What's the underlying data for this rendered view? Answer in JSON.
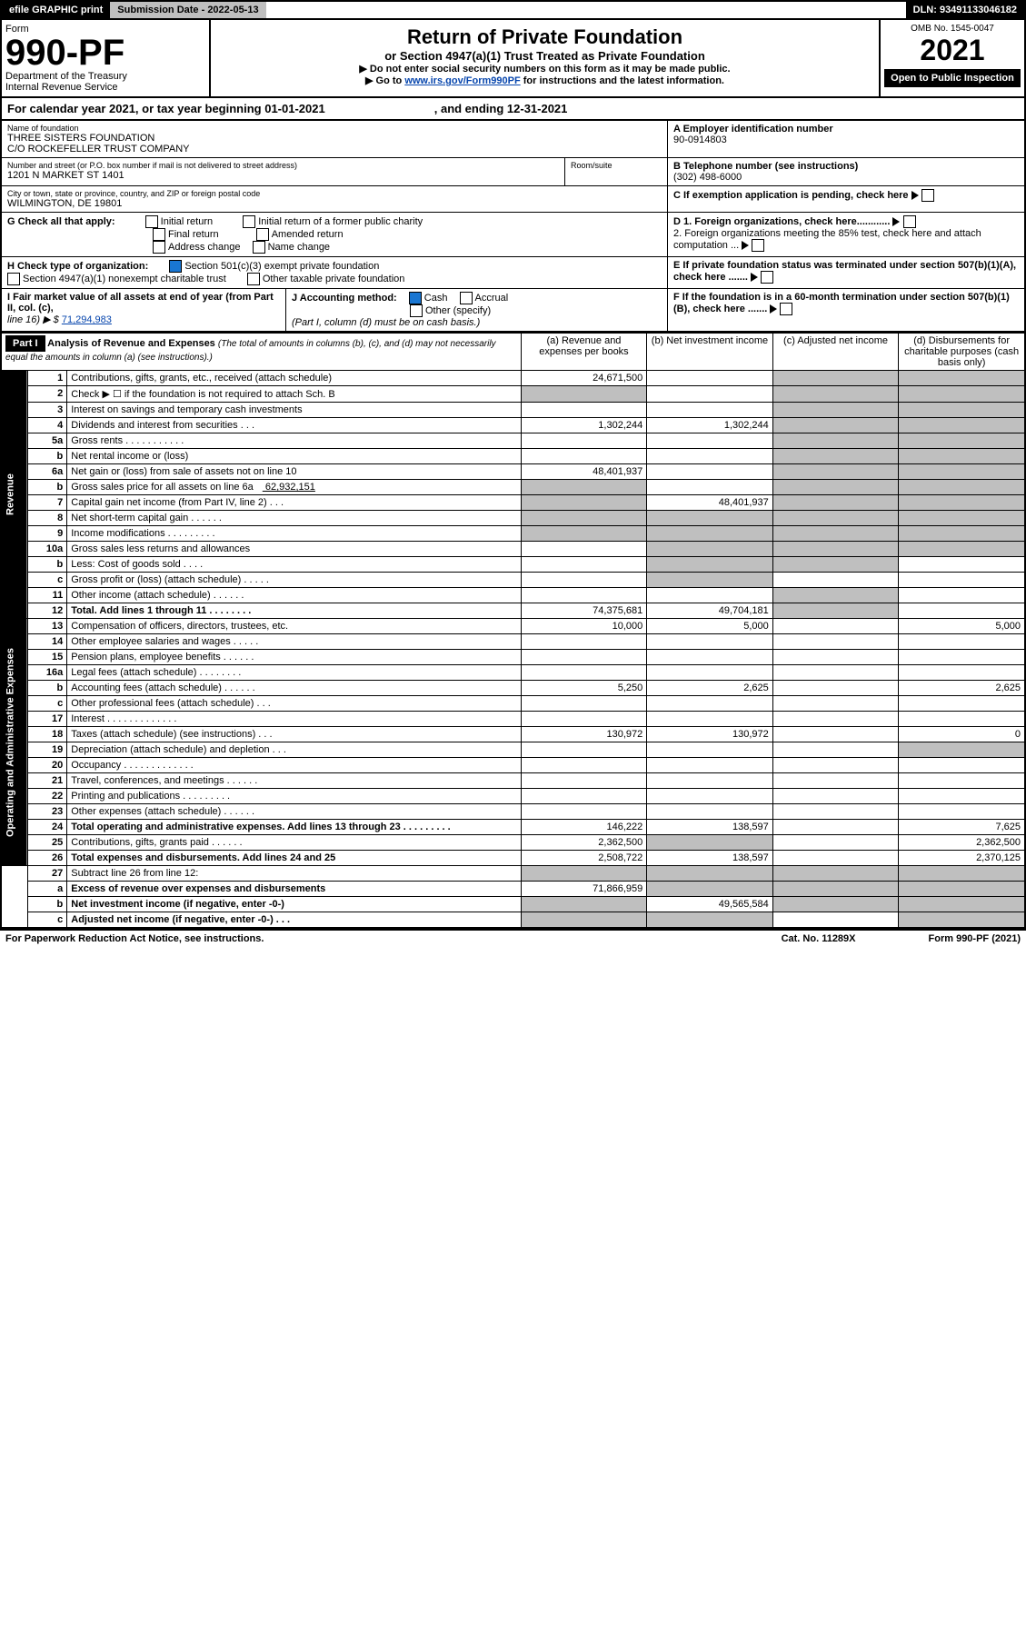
{
  "topbar": {
    "efile": "efile GRAPHIC print",
    "subLabel": "Submission Date - 2022-05-13",
    "dln": "DLN: 93491133046182"
  },
  "header": {
    "formWord": "Form",
    "formNum": "990-PF",
    "dept": "Department of the Treasury",
    "irs": "Internal Revenue Service",
    "title1": "Return of Private Foundation",
    "title2": "or Section 4947(a)(1) Trust Treated as Private Foundation",
    "note1": "▶ Do not enter social security numbers on this form as it may be made public.",
    "note2": "▶ Go to ",
    "noteLink": "www.irs.gov/Form990PF",
    "note3": " for instructions and the latest information.",
    "omb": "OMB No. 1545-0047",
    "year": "2021",
    "open": "Open to Public Inspection"
  },
  "calyr": {
    "a": "For calendar year 2021, or tax year beginning 01-01-2021",
    "b": ", and ending 12-31-2021"
  },
  "eid": {
    "label": "A Employer identification number",
    "val": "90-0914803"
  },
  "foundation": {
    "label": "Name of foundation",
    "name1": "THREE SISTERS FOUNDATION",
    "name2": "C/O ROCKEFELLER TRUST COMPANY"
  },
  "addr": {
    "label": "Number and street (or P.O. box number if mail is not delivered to street address)",
    "val": "1201 N MARKET ST 1401",
    "room": "Room/suite"
  },
  "tel": {
    "label": "B Telephone number (see instructions)",
    "val": "(302) 498-6000"
  },
  "city": {
    "label": "City or town, state or province, country, and ZIP or foreign postal code",
    "val": "WILMINGTON, DE  19801"
  },
  "cex": {
    "label": "C If exemption application is pending, check here"
  },
  "gc": {
    "label": "G Check all that apply:",
    "opts": [
      "Initial return",
      "Final return",
      "Address change",
      "Initial return of a former public charity",
      "Amended return",
      "Name change"
    ]
  },
  "d1": {
    "l1": "D 1. Foreign organizations, check here............",
    "l2": "2. Foreign organizations meeting the 85% test, check here and attach computation ..."
  },
  "e": {
    "label": "E  If private foundation status was terminated under section 507(b)(1)(A), check here ......."
  },
  "f": {
    "label": "F  If the foundation is in a 60-month termination under section 507(b)(1)(B), check here ......."
  },
  "h": {
    "label": "H Check type of organization:",
    "o1": "Section 501(c)(3) exempt private foundation",
    "o2": "Section 4947(a)(1) nonexempt charitable trust",
    "o3": "Other taxable private foundation"
  },
  "i": {
    "label": "I Fair market value of all assets at end of year (from Part II, col. (c),",
    "line": "line 16) ▶ $",
    "val": "71,294,983"
  },
  "j": {
    "label": "J Accounting method:",
    "cash": "Cash",
    "accr": "Accrual",
    "other": "Other (specify)",
    "note": "(Part I, column (d) must be on cash basis.)"
  },
  "part1": {
    "tag": "Part I",
    "title": "Analysis of Revenue and Expenses",
    "sub": "(The total of amounts in columns (b), (c), and (d) may not necessarily equal the amounts in column (a) (see instructions).)",
    "cols": [
      "(a)  Revenue and expenses per books",
      "(b)  Net investment income",
      "(c)  Adjusted net income",
      "(d)  Disbursements for charitable purposes (cash basis only)"
    ],
    "revLabel": "Revenue",
    "expLabel": "Operating and Administrative Expenses",
    "rows": [
      {
        "ln": "1",
        "d": "Contributions, gifts, grants, etc., received (attach schedule)",
        "a": "24,671,500"
      },
      {
        "ln": "2",
        "d": "Check ▶ ☐ if the foundation is not required to attach Sch. B",
        "a": "na"
      },
      {
        "ln": "3",
        "d": "Interest on savings and temporary cash investments"
      },
      {
        "ln": "4",
        "d": "Dividends and interest from securities   .   .   .",
        "a": "1,302,244",
        "b": "1,302,244"
      },
      {
        "ln": "5a",
        "d": "Gross rents   .   .   .   .   .   .   .   .   .   .   ."
      },
      {
        "ln": "b",
        "d": "Net rental income or (loss)",
        "ainline": true
      },
      {
        "ln": "6a",
        "d": "Net gain or (loss) from sale of assets not on line 10",
        "a": "48,401,937"
      },
      {
        "ln": "b",
        "d": "Gross sales price for all assets on line 6a",
        "inline": "62,932,151",
        "a": "na"
      },
      {
        "ln": "7",
        "d": "Capital gain net income (from Part IV, line 2)   .   .   .",
        "a": "na",
        "b": "48,401,937"
      },
      {
        "ln": "8",
        "d": "Net short-term capital gain   .   .   .   .   .   .",
        "a": "na",
        "b": "na"
      },
      {
        "ln": "9",
        "d": "Income modifications .   .   .   .   .   .   .   .   .",
        "a": "na",
        "b": "na"
      },
      {
        "ln": "10a",
        "d": "Gross sales less returns and allowances",
        "ainline": true,
        "bna": true
      },
      {
        "ln": "b",
        "d": "Less: Cost of goods sold   .   .   .   .",
        "ainline": true,
        "bna": true
      },
      {
        "ln": "c",
        "d": "Gross profit or (loss) (attach schedule)   .   .   .   .   .",
        "bna": true
      },
      {
        "ln": "11",
        "d": "Other income (attach schedule)    .   .   .   .   .   ."
      },
      {
        "ln": "12",
        "d": "Total. Add lines 1 through 11   .   .   .   .   .   .   .   .",
        "bold": true,
        "a": "74,375,681",
        "b": "49,704,181"
      },
      {
        "ln": "13",
        "d": "Compensation of officers, directors, trustees, etc.",
        "a": "10,000",
        "b": "5,000",
        "dd": "5,000",
        "exp": true
      },
      {
        "ln": "14",
        "d": "Other employee salaries and wages   .   .   .   .   .",
        "exp": true
      },
      {
        "ln": "15",
        "d": "Pension plans, employee benefits  .   .   .   .   .   .",
        "exp": true
      },
      {
        "ln": "16a",
        "d": "Legal fees (attach schedule) .   .   .   .   .   .   .   .",
        "exp": true
      },
      {
        "ln": "b",
        "d": "Accounting fees (attach schedule)  .   .   .   .   .   .",
        "a": "5,250",
        "b": "2,625",
        "dd": "2,625",
        "exp": true
      },
      {
        "ln": "c",
        "d": "Other professional fees (attach schedule)   .   .   .",
        "exp": true
      },
      {
        "ln": "17",
        "d": "Interest  .   .   .   .   .   .   .   .   .   .   .   .   .",
        "exp": true
      },
      {
        "ln": "18",
        "d": "Taxes (attach schedule) (see instructions)   .   .   .",
        "a": "130,972",
        "b": "130,972",
        "dd": "0",
        "exp": true
      },
      {
        "ln": "19",
        "d": "Depreciation (attach schedule) and depletion   .   .   .",
        "dna": true,
        "exp": true
      },
      {
        "ln": "20",
        "d": "Occupancy .   .   .   .   .   .   .   .   .   .   .   .   .",
        "exp": true
      },
      {
        "ln": "21",
        "d": "Travel, conferences, and meetings .   .   .   .   .   .",
        "exp": true
      },
      {
        "ln": "22",
        "d": "Printing and publications .   .   .   .   .   .   .   .   .",
        "exp": true
      },
      {
        "ln": "23",
        "d": "Other expenses (attach schedule)  .   .   .   .   .   .",
        "exp": true
      },
      {
        "ln": "24",
        "d": "Total operating and administrative expenses. Add lines 13 through 23   .   .   .   .   .   .   .   .   .",
        "bold": true,
        "a": "146,222",
        "b": "138,597",
        "dd": "7,625",
        "exp": true
      },
      {
        "ln": "25",
        "d": "Contributions, gifts, grants paid    .   .   .   .   .   .",
        "a": "2,362,500",
        "bna": true,
        "dd": "2,362,500",
        "exp": true
      },
      {
        "ln": "26",
        "d": "Total expenses and disbursements. Add lines 24 and 25",
        "bold": true,
        "a": "2,508,722",
        "b": "138,597",
        "dd": "2,370,125",
        "exp": true
      },
      {
        "ln": "27",
        "d": "Subtract line 26 from line 12:",
        "allna": true
      },
      {
        "ln": "a",
        "d": "Excess of revenue over expenses and disbursements",
        "bold": true,
        "a": "71,866,959",
        "bna": true,
        "cna": true,
        "dna": true
      },
      {
        "ln": "b",
        "d": "Net investment income (if negative, enter -0-)",
        "bold": true,
        "ana": true,
        "b": "49,565,584",
        "cna": true,
        "dna": true
      },
      {
        "ln": "c",
        "d": "Adjusted net income (if negative, enter -0-)   .   .   .",
        "bold": true,
        "ana": true,
        "bna": true,
        "dna": true
      }
    ]
  },
  "foot": {
    "l": "For Paperwork Reduction Act Notice, see instructions.",
    "c": "Cat. No. 11289X",
    "r": "Form 990-PF (2021)"
  }
}
